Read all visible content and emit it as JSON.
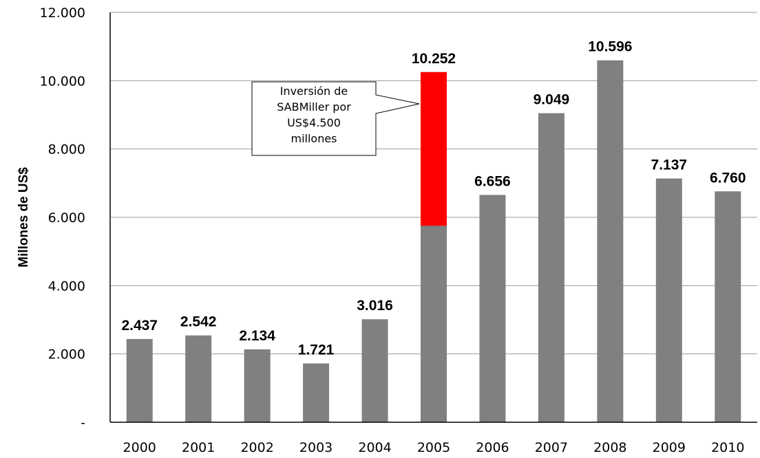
{
  "chart_data": {
    "type": "bar",
    "categories": [
      "2000",
      "2001",
      "2002",
      "2003",
      "2004",
      "2005",
      "2006",
      "2007",
      "2008",
      "2009",
      "2010"
    ],
    "values": [
      2437,
      2542,
      2134,
      1721,
      3016,
      10252,
      6656,
      9049,
      10596,
      7137,
      6760
    ],
    "value_labels": [
      "2.437",
      "2.542",
      "2.134",
      "1.721",
      "3.016",
      "10.252",
      "6.656",
      "9.049",
      "10.596",
      "7.137",
      "6.760"
    ],
    "highlight": {
      "category": "2005",
      "value": 4500,
      "color": "#ff0000"
    },
    "annotation": [
      "Inversión de",
      "SABMiller por",
      "US$4.500",
      "millones"
    ],
    "ylabel": "Millones de US$",
    "xlabel": "",
    "ylim": [
      0,
      12000
    ],
    "yticks": [
      0,
      2000,
      4000,
      6000,
      8000,
      10000,
      12000
    ],
    "ytick_labels": [
      "-",
      "2.000",
      "4.000",
      "6.000",
      "8.000",
      "10.000",
      "12.000"
    ],
    "grid": true,
    "bar_color": "#808080"
  }
}
